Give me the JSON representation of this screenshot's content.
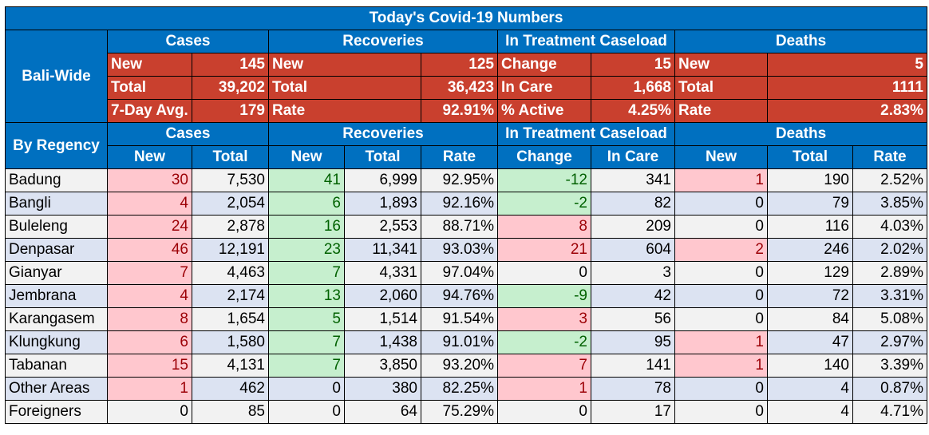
{
  "title": "Today's Covid-19 Numbers",
  "bali_wide": {
    "label": "Bali-Wide",
    "groups": [
      "Cases",
      "Recoveries",
      "In Treatment Caseload",
      "Deaths"
    ],
    "rows": [
      [
        "New",
        "145",
        "New",
        "125",
        "Change",
        "15",
        "New",
        "5"
      ],
      [
        "Total",
        "39,202",
        "Total",
        "36,423",
        "In Care",
        "1,668",
        "Total",
        "1111"
      ],
      [
        "7-Day Avg.",
        "179",
        "Rate",
        "92.91%",
        "% Active",
        "4.25%",
        "Rate",
        "2.83%"
      ]
    ]
  },
  "regency": {
    "label": "By Regency",
    "groups": [
      "Cases",
      "Recoveries",
      "In Treatment Caseload",
      "Deaths"
    ],
    "columns": [
      "New",
      "Total",
      "New",
      "Total",
      "Rate",
      "Change",
      "In Care",
      "New",
      "Total",
      "Rate"
    ],
    "rows": [
      {
        "name": "Badung",
        "values": [
          "30",
          "7,530",
          "41",
          "6,999",
          "92.95%",
          "-12",
          "341",
          "1",
          "190",
          "2.52%"
        ]
      },
      {
        "name": "Bangli",
        "values": [
          "4",
          "2,054",
          "6",
          "1,893",
          "92.16%",
          "-2",
          "82",
          "0",
          "79",
          "3.85%"
        ]
      },
      {
        "name": "Buleleng",
        "values": [
          "24",
          "2,878",
          "16",
          "2,553",
          "88.71%",
          "8",
          "209",
          "0",
          "116",
          "4.03%"
        ]
      },
      {
        "name": "Denpasar",
        "values": [
          "46",
          "12,191",
          "23",
          "11,341",
          "93.03%",
          "21",
          "604",
          "2",
          "246",
          "2.02%"
        ]
      },
      {
        "name": "Gianyar",
        "values": [
          "7",
          "4,463",
          "7",
          "4,331",
          "97.04%",
          "0",
          "3",
          "0",
          "129",
          "2.89%"
        ]
      },
      {
        "name": "Jembrana",
        "values": [
          "4",
          "2,174",
          "13",
          "2,060",
          "94.76%",
          "-9",
          "42",
          "0",
          "72",
          "3.31%"
        ]
      },
      {
        "name": "Karangasem",
        "values": [
          "8",
          "1,654",
          "5",
          "1,514",
          "91.54%",
          "3",
          "56",
          "0",
          "84",
          "5.08%"
        ]
      },
      {
        "name": "Klungkung",
        "values": [
          "6",
          "1,580",
          "7",
          "1,438",
          "91.01%",
          "-2",
          "95",
          "1",
          "47",
          "2.97%"
        ]
      },
      {
        "name": "Tabanan",
        "values": [
          "15",
          "4,131",
          "7",
          "3,850",
          "93.20%",
          "7",
          "141",
          "1",
          "140",
          "3.39%"
        ]
      },
      {
        "name": "Other Areas",
        "values": [
          "1",
          "462",
          "0",
          "380",
          "82.25%",
          "1",
          "78",
          "0",
          "4",
          "0.87%"
        ]
      },
      {
        "name": "Foreigners",
        "values": [
          "0",
          "85",
          "0",
          "64",
          "75.29%",
          "0",
          "17",
          "0",
          "4",
          "4.71%"
        ]
      }
    ]
  },
  "colors": {
    "header_blue": "#0070C0",
    "summary_red": "#C9402E",
    "increase_pink": "#FFC7CE",
    "recovery_green": "#C6EFCE",
    "row_light": "#F2F2F2",
    "row_blue": "#DCE3F2"
  }
}
